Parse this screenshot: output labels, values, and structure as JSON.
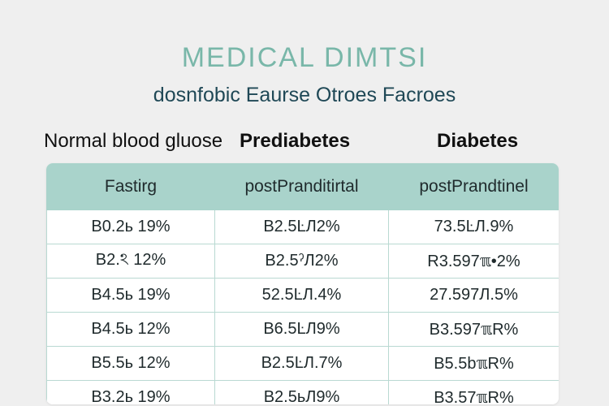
{
  "header": {
    "title": "MEDICAL DIMTSI",
    "subtitle": "dosnfobic Eaurse Otroes Facroes"
  },
  "categories": [
    "Normal blood gluose",
    "Prediabetes",
    "Diabetes"
  ],
  "table": {
    "columns": [
      "Fastirg",
      "postPranditirtal",
      "postPrandtinel"
    ],
    "rows": [
      [
        "B0.2ь 19%",
        "B2.5ĿЛ2%",
        "73.5ĿЛ.9%"
      ],
      [
        "B2.ঽ 12%",
        "B2.5ˀЛ2%",
        "R3.597ℼ•2%"
      ],
      [
        "B4.5ь 19%",
        "52.5ĿЛ.4%",
        "27.597Л.5%"
      ],
      [
        "B4.5ь 12%",
        "B6.5ĿЛ9%",
        "B3.597ℼR%"
      ],
      [
        "B5.5ь 12%",
        "B2.5ĿЛ.7%",
        "B5.5bℼR%"
      ],
      [
        "B3.2ь 19%",
        "B2.5ьЛ9%",
        "B3.57ℼR%"
      ]
    ]
  },
  "colors": {
    "title": "#79b7a9",
    "subtitle": "#1f4856",
    "header_fill": "#a9d3cb",
    "grid": "#b9d9d2",
    "background": "#efefef"
  }
}
